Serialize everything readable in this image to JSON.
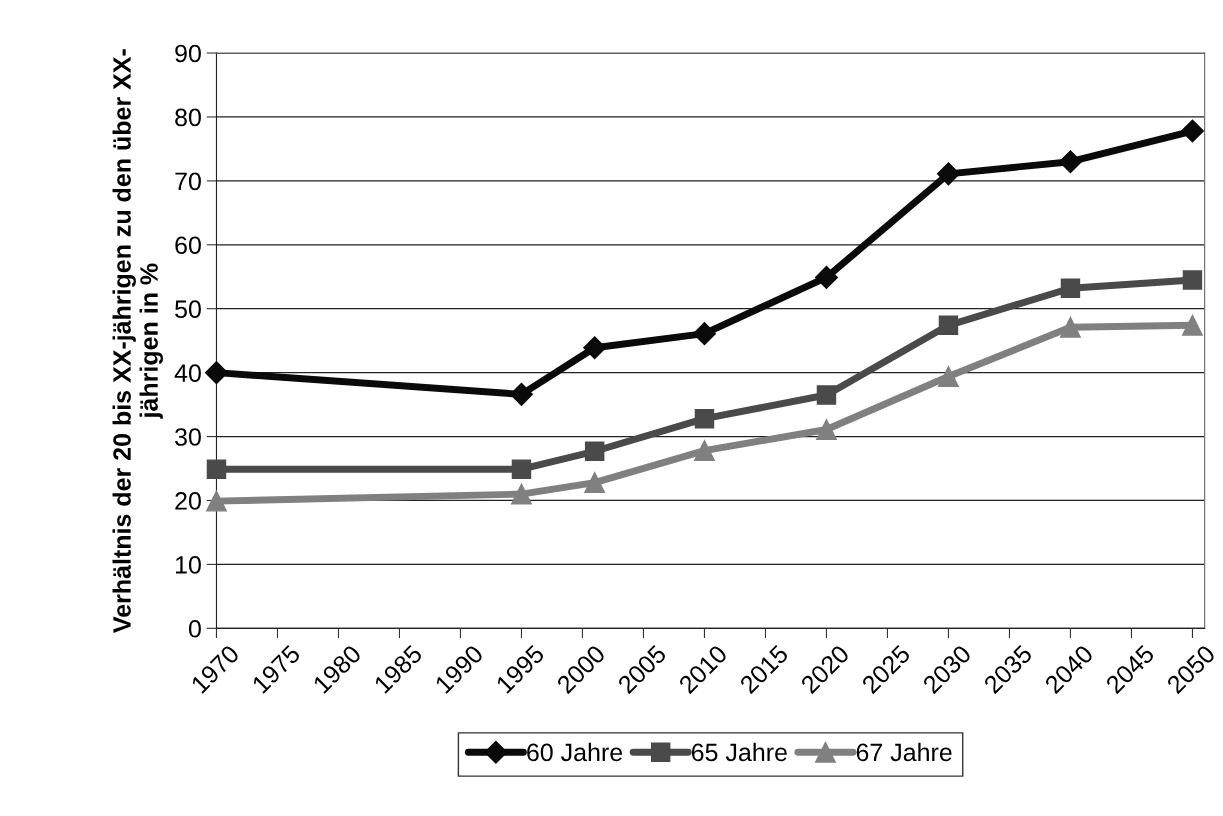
{
  "chart_data": {
    "type": "line",
    "ylabel": "Verhältnis der 20 bis XX-jährigen zu den über XX-\njährigen in %",
    "x": [
      1970,
      1995,
      2001,
      2010,
      2020,
      2030,
      2040,
      2050
    ],
    "series": [
      {
        "name": "60 Jahre",
        "color": "#0a0a0a",
        "marker": "diamond",
        "values": [
          40.0,
          36.6,
          43.9,
          46.1,
          54.9,
          71.1,
          73.0,
          77.8
        ]
      },
      {
        "name": "65 Jahre",
        "color": "#4a4a4a",
        "marker": "square",
        "values": [
          24.9,
          24.9,
          27.7,
          32.8,
          36.5,
          47.4,
          53.2,
          54.5
        ]
      },
      {
        "name": "67 Jahre",
        "color": "#808080",
        "marker": "triangle",
        "values": [
          19.9,
          21.0,
          22.8,
          27.8,
          31.1,
          39.4,
          47.1,
          47.4
        ]
      }
    ],
    "xlim": [
      1970,
      2051
    ],
    "xticks": [
      1970,
      1975,
      1980,
      1985,
      1990,
      1995,
      2000,
      2005,
      2010,
      2015,
      2020,
      2025,
      2030,
      2035,
      2040,
      2045,
      2050
    ],
    "ylim": [
      0,
      90
    ],
    "yticks": [
      0,
      10,
      20,
      30,
      40,
      50,
      60,
      70,
      80,
      90
    ],
    "grid": "y",
    "legend": "bottom",
    "line_style": "solid"
  }
}
